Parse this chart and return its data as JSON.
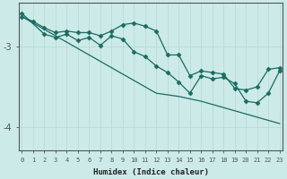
{
  "xlabel": "Humidex (Indice chaleur)",
  "bg_color": "#cceae8",
  "line_color": "#1a6b60",
  "grid_color": "#b8dbd9",
  "axis_color": "#555555",
  "x_ticks": [
    0,
    1,
    2,
    3,
    4,
    5,
    6,
    7,
    8,
    9,
    10,
    11,
    12,
    13,
    14,
    15,
    16,
    17,
    18,
    19,
    20,
    21,
    22,
    23
  ],
  "y_ticks": [
    -3,
    -4
  ],
  "ylim": [
    -4.3,
    -2.45
  ],
  "xlim": [
    -0.3,
    23.3
  ],
  "line1_x": [
    0,
    1,
    2,
    3,
    4,
    5,
    6,
    7,
    8,
    9,
    10,
    11,
    12,
    13,
    14,
    15,
    16,
    17,
    18,
    19,
    20,
    21,
    22,
    23
  ],
  "line1_y": [
    -2.62,
    -2.7,
    -2.78,
    -2.86,
    -2.94,
    -3.02,
    -3.1,
    -3.18,
    -3.26,
    -3.34,
    -3.42,
    -3.5,
    -3.58,
    -3.6,
    -3.62,
    -3.65,
    -3.68,
    -3.72,
    -3.76,
    -3.8,
    -3.84,
    -3.88,
    -3.92,
    -3.96
  ],
  "line2_x": [
    0,
    1,
    2,
    3,
    4,
    5,
    6,
    7,
    8,
    9,
    10,
    11,
    12,
    13,
    14,
    15,
    16,
    17,
    18,
    19,
    20,
    21,
    22,
    23
  ],
  "line2_y": [
    -2.62,
    -2.68,
    -2.76,
    -2.82,
    -2.8,
    -2.82,
    -2.82,
    -2.86,
    -2.8,
    -2.72,
    -2.7,
    -2.74,
    -2.8,
    -3.1,
    -3.1,
    -3.36,
    -3.3,
    -3.32,
    -3.34,
    -3.52,
    -3.54,
    -3.5,
    -3.28,
    -3.26
  ],
  "line3_x": [
    0,
    2,
    3,
    4,
    5,
    6,
    7,
    8,
    9,
    10,
    11,
    12,
    13,
    14,
    15,
    16,
    17,
    18,
    19,
    20,
    21,
    22,
    23
  ],
  "line3_y": [
    -2.58,
    -2.84,
    -2.88,
    -2.84,
    -2.92,
    -2.88,
    -2.98,
    -2.86,
    -2.9,
    -3.06,
    -3.12,
    -3.24,
    -3.32,
    -3.44,
    -3.58,
    -3.36,
    -3.4,
    -3.38,
    -3.46,
    -3.68,
    -3.7,
    -3.58,
    -3.3
  ]
}
